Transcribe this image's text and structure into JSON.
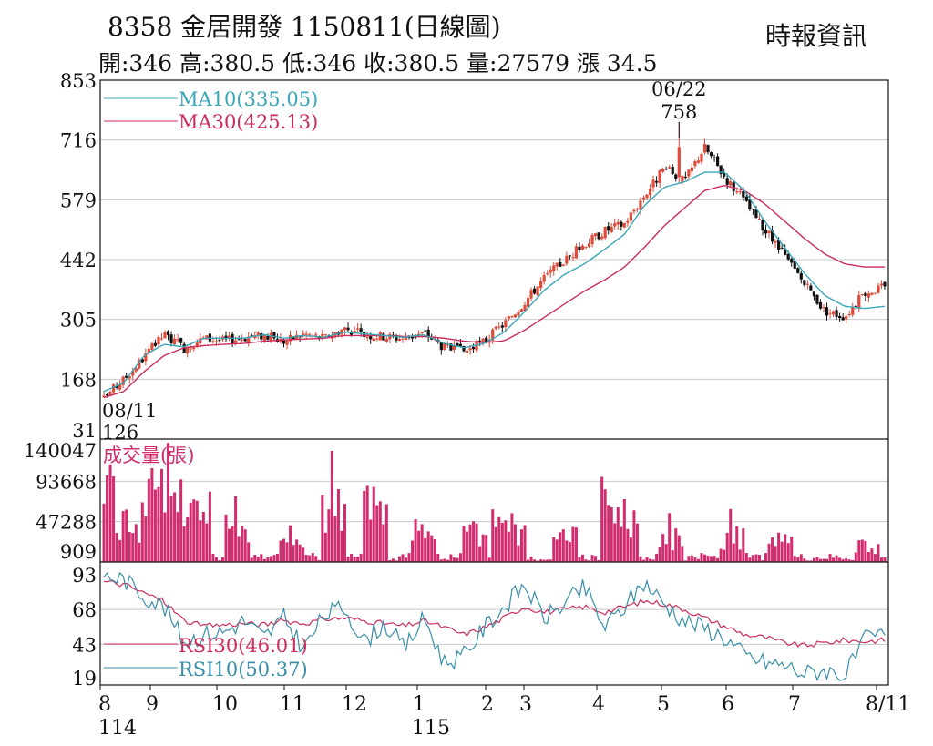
{
  "header": {
    "title": "8358  金居開發 1150811(日線圖)",
    "source": "時報資訊",
    "stats": "開:346 高:380.5 低:346 收:380.5 量:27579 漲 34.5"
  },
  "colors": {
    "up": "#e04a3a",
    "down": "#111111",
    "ma10": "#3aa6b8",
    "ma30": "#cc2c5c",
    "volume": "#d22b6e",
    "rsi30": "#cc2c5c",
    "rsi10": "#3a8fa8",
    "grid": "#c8c8c8"
  },
  "chart_data": [
    {
      "type": "candlestick",
      "yticks": [
        "853",
        "716",
        "579",
        "442",
        "305",
        "168",
        "31"
      ],
      "ylim": [
        31,
        853
      ],
      "x_month_labels": [
        "8",
        "9",
        "10",
        "11",
        "12",
        "1",
        "2",
        "3",
        "4",
        "5",
        "6",
        "7",
        "8/11"
      ],
      "x_year_labels": [
        "114",
        "115"
      ],
      "legend": [
        {
          "name": "MA10(335.05)",
          "color_key": "ma10"
        },
        {
          "name": "MA30(425.13)",
          "color_key": "ma30"
        }
      ],
      "annotations": [
        {
          "text": "06/22",
          "value": 758
        },
        {
          "text": "758",
          "value": 758
        },
        {
          "text": "08/11",
          "value": 126
        },
        {
          "text": "126",
          "value": 126
        }
      ],
      "close_anchors": [
        126,
        168,
        218,
        270,
        240,
        262,
        256,
        264,
        268,
        255,
        272,
        262,
        285,
        270,
        266,
        262,
        275,
        240,
        232,
        255,
        296,
        345,
        400,
        440,
        478,
        508,
        525,
        590,
        650,
        622,
        700,
        632,
        575,
        510,
        450,
        385,
        325,
        312,
        366,
        380.5
      ],
      "ma10_anchors": [
        140,
        160,
        222,
        248,
        242,
        262,
        262,
        262,
        270,
        262,
        268,
        264,
        276,
        272,
        268,
        264,
        270,
        250,
        240,
        250,
        276,
        322,
        372,
        408,
        432,
        465,
        500,
        566,
        608,
        620,
        642,
        642,
        600,
        530,
        470,
        410,
        360,
        335,
        330,
        335.05
      ],
      "ma30_anchors": [
        126,
        140,
        185,
        222,
        240,
        245,
        248,
        250,
        255,
        258,
        260,
        262,
        268,
        268,
        268,
        266,
        266,
        262,
        255,
        252,
        256,
        280,
        310,
        340,
        370,
        395,
        425,
        470,
        520,
        560,
        600,
        612,
        600,
        570,
        530,
        490,
        455,
        432,
        425.13,
        425.13
      ]
    },
    {
      "type": "bar",
      "title": "成交量(張)",
      "yticks": [
        "140047",
        "93668",
        "47288",
        "909"
      ],
      "ylim": [
        909,
        140047
      ],
      "spikes": [
        {
          "month_pos": 0.03,
          "value": 118000
        },
        {
          "month_pos": 0.5,
          "value": 62000
        },
        {
          "month_pos": 1.05,
          "value": 128000
        },
        {
          "month_pos": 1.25,
          "value": 98000
        },
        {
          "month_pos": 1.45,
          "value": 105000
        },
        {
          "month_pos": 1.7,
          "value": 85000
        },
        {
          "month_pos": 2.3,
          "value": 60000
        },
        {
          "month_pos": 3.1,
          "value": 42000
        },
        {
          "month_pos": 3.75,
          "value": 88000
        },
        {
          "month_pos": 4.4,
          "value": 100000
        },
        {
          "month_pos": 5.05,
          "value": 68000
        },
        {
          "month_pos": 5.8,
          "value": 46000
        },
        {
          "month_pos": 6.45,
          "value": 62000
        },
        {
          "month_pos": 6.7,
          "value": 50000
        },
        {
          "month_pos": 7.55,
          "value": 42000
        },
        {
          "month_pos": 8.25,
          "value": 100000
        },
        {
          "month_pos": 8.45,
          "value": 62000
        },
        {
          "month_pos": 9.1,
          "value": 40000
        },
        {
          "month_pos": 10.05,
          "value": 42000
        },
        {
          "month_pos": 10.8,
          "value": 35000
        },
        {
          "month_pos": 11.85,
          "value": 28000
        }
      ]
    },
    {
      "type": "line",
      "yticks": [
        "93",
        "68",
        "43",
        "19"
      ],
      "ylim": [
        19,
        93
      ],
      "series": [
        {
          "name": "RSI30(46.01)",
          "color_key": "rsi30",
          "values": [
            88,
            86,
            80,
            74,
            60,
            56,
            57,
            58,
            57,
            60,
            58,
            61,
            62,
            60,
            58,
            56,
            60,
            55,
            50,
            55,
            62,
            70,
            66,
            68,
            70,
            66,
            70,
            74,
            72,
            68,
            62,
            56,
            50,
            48,
            44,
            42,
            44,
            46,
            45,
            46.01
          ]
        },
        {
          "name": "RSI10(50.37)",
          "color_key": "rsi10",
          "values": [
            92,
            90,
            78,
            70,
            45,
            50,
            52,
            60,
            48,
            62,
            40,
            64,
            70,
            45,
            58,
            40,
            62,
            30,
            35,
            55,
            70,
            86,
            62,
            72,
            84,
            55,
            70,
            88,
            72,
            60,
            55,
            48,
            35,
            30,
            28,
            22,
            25,
            20,
            46,
            50.37
          ]
        }
      ]
    }
  ]
}
